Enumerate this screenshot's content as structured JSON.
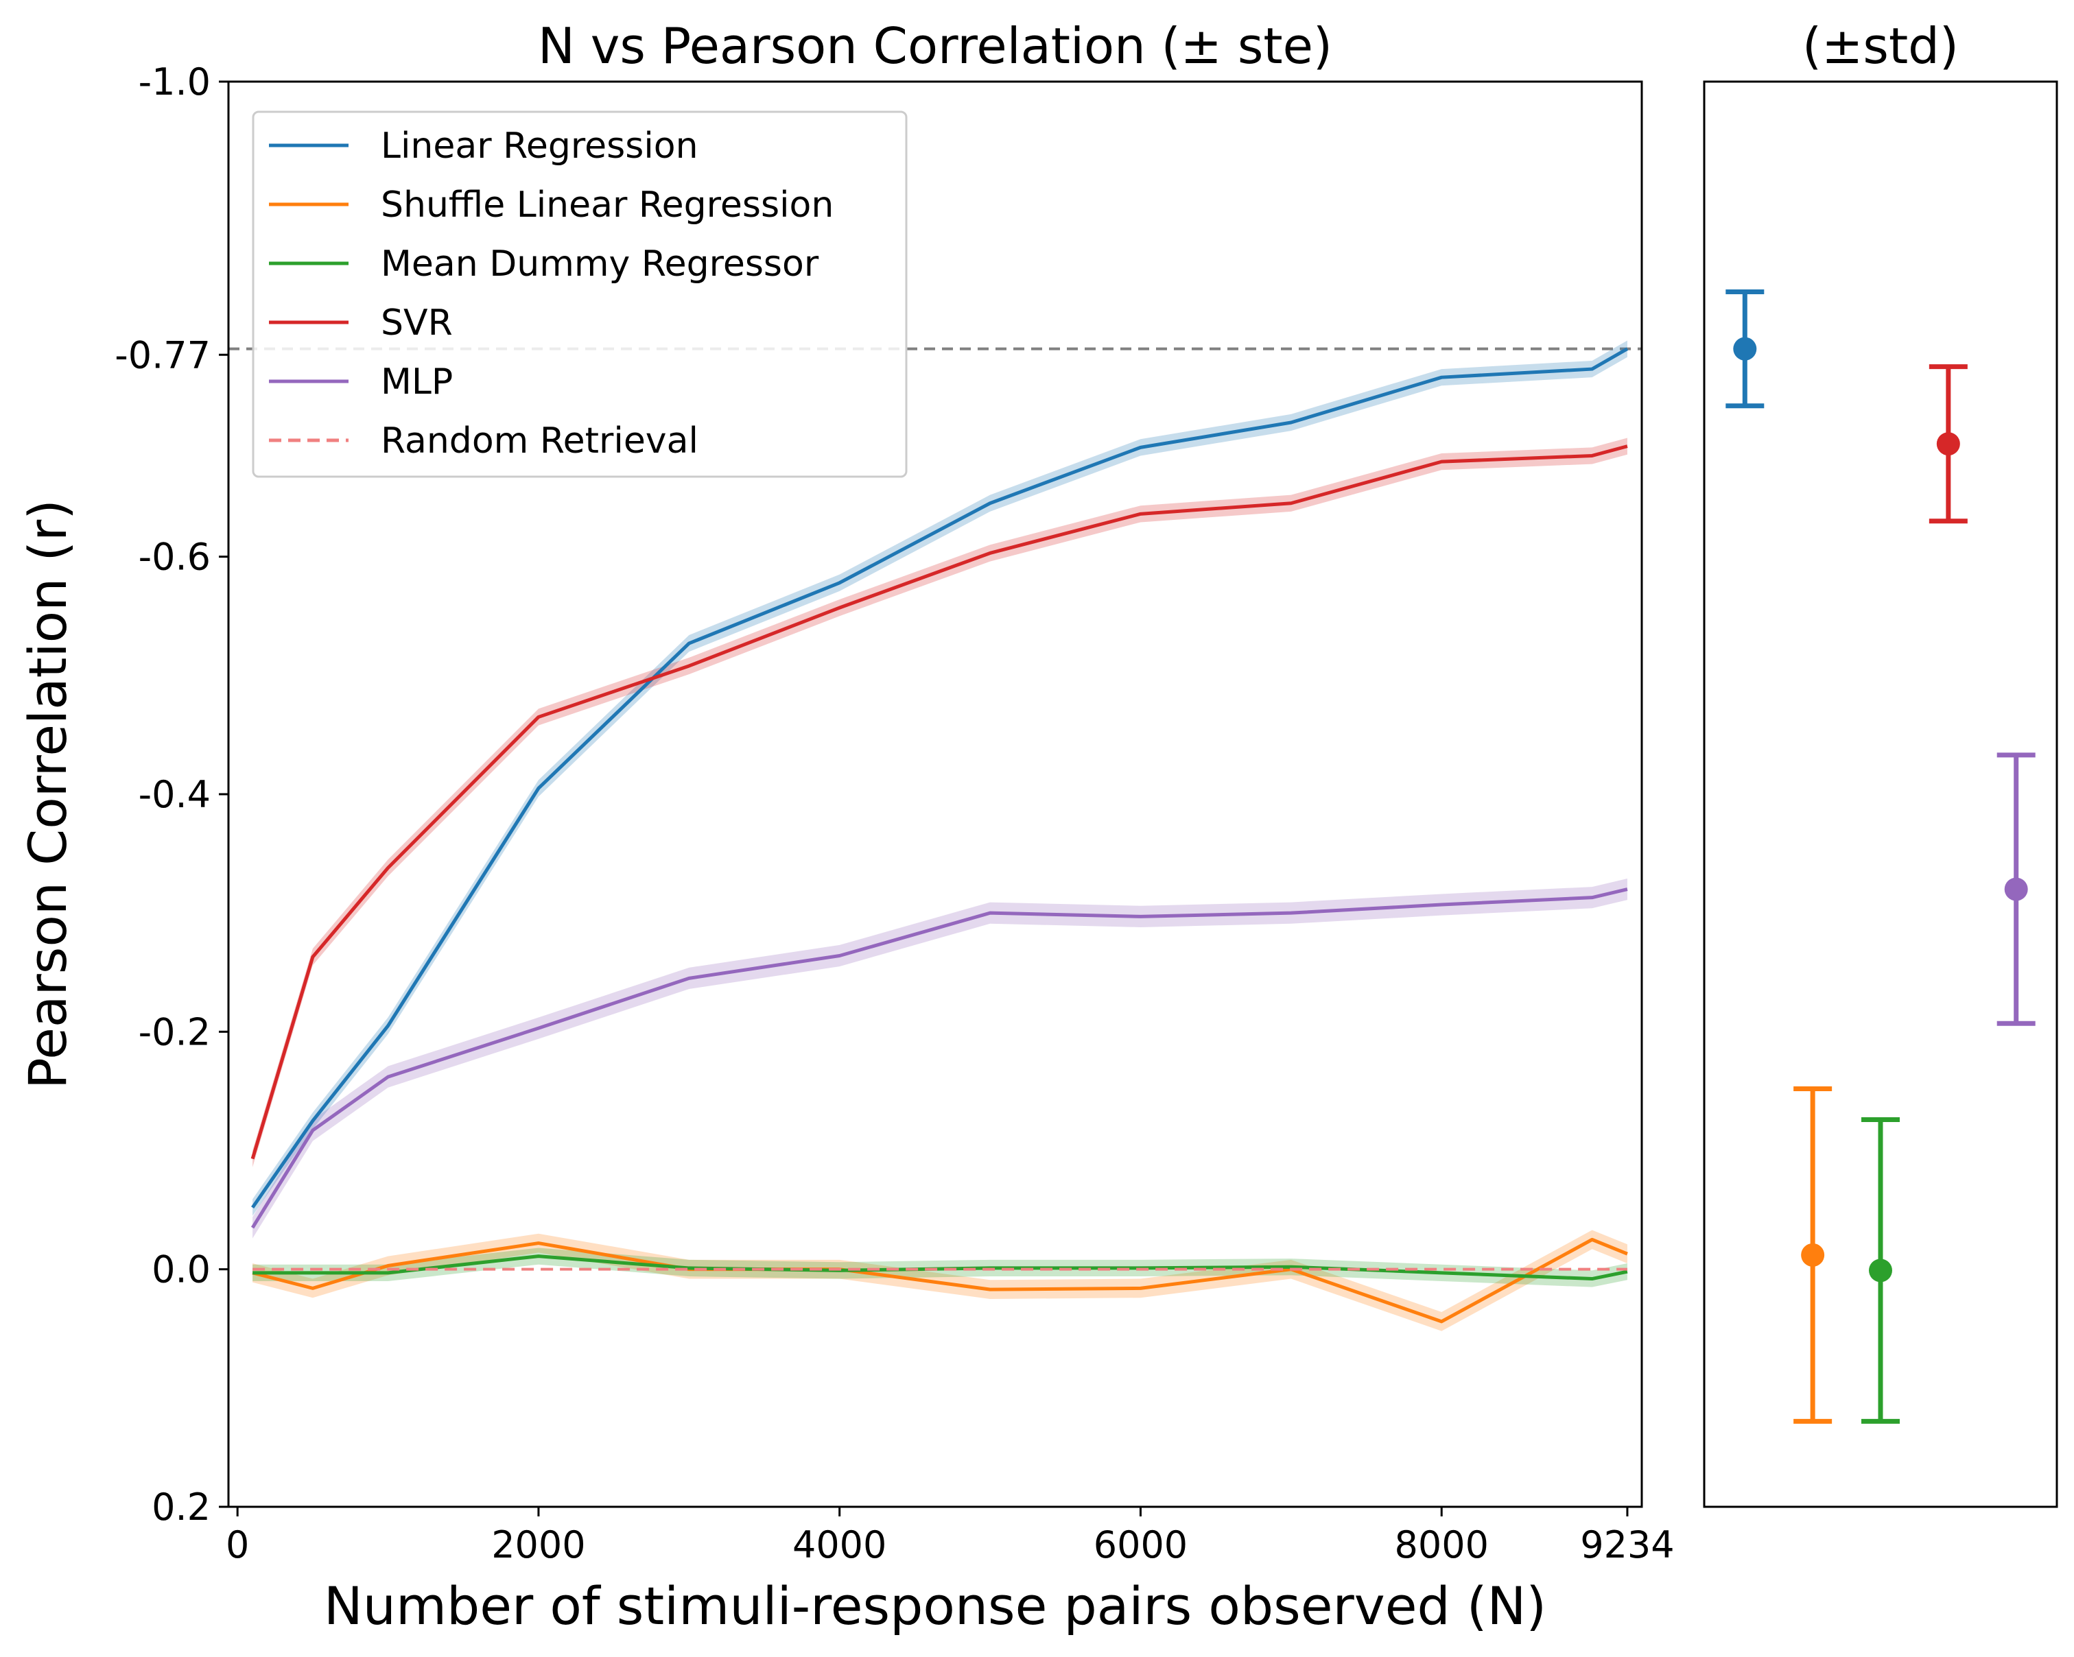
{
  "chart_data": [
    {
      "type": "line",
      "title": "N vs Pearson Correlation (± ste)",
      "xlabel": "Number of stimuli-response pairs observed (N)",
      "ylabel": "Pearson Correlation (r)",
      "xlim": [
        -60,
        9330
      ],
      "ylim": [
        0.2,
        -1.0
      ],
      "y_inverted": true,
      "xticks": [
        0,
        2000,
        4000,
        6000,
        8000,
        9234
      ],
      "xtick_labels": [
        "0",
        "2000",
        "4000",
        "6000",
        "8000",
        "9234"
      ],
      "yticks": [
        -1.0,
        -0.77,
        -0.6,
        -0.4,
        -0.2,
        0.0,
        0.2
      ],
      "ytick_labels": [
        "-1.0",
        "-0.77",
        "-0.6",
        "-0.4",
        "-0.2",
        "0.0",
        "0.2"
      ],
      "legend_position": "top-left",
      "reference_line": {
        "y": -0.775,
        "style": "dashed",
        "color": "#808080"
      },
      "x": [
        100,
        500,
        1000,
        2000,
        3000,
        4000,
        5000,
        6000,
        7000,
        8000,
        9000,
        9234
      ],
      "series": [
        {
          "name": "Linear Regression",
          "color": "#1f77b4",
          "style": "solid",
          "values": [
            -0.052,
            -0.125,
            -0.205,
            -0.405,
            -0.527,
            -0.578,
            -0.645,
            -0.692,
            -0.713,
            -0.751,
            -0.758,
            -0.775
          ],
          "ste": 0.007
        },
        {
          "name": "Shuffle Linear Regression",
          "color": "#ff7f0e",
          "style": "solid",
          "values": [
            0.003,
            0.016,
            -0.003,
            -0.022,
            0.0,
            0.0,
            0.017,
            0.016,
            0.0,
            0.044,
            -0.025,
            -0.013
          ],
          "ste": 0.008
        },
        {
          "name": "Mean Dummy Regressor",
          "color": "#2ca02c",
          "style": "solid",
          "values": [
            0.003,
            0.003,
            0.003,
            -0.011,
            -0.001,
            0.001,
            -0.001,
            -0.001,
            -0.002,
            0.003,
            0.008,
            0.002
          ],
          "ste": 0.007
        },
        {
          "name": "SVR",
          "color": "#d62728",
          "style": "solid",
          "values": [
            -0.093,
            -0.263,
            -0.338,
            -0.465,
            -0.508,
            -0.557,
            -0.603,
            -0.636,
            -0.645,
            -0.68,
            -0.685,
            -0.693
          ],
          "ste": 0.007
        },
        {
          "name": "MLP",
          "color": "#9467bd",
          "style": "solid",
          "values": [
            -0.035,
            -0.117,
            -0.162,
            -0.203,
            -0.245,
            -0.264,
            -0.3,
            -0.297,
            -0.3,
            -0.307,
            -0.313,
            -0.32
          ],
          "ste": 0.009
        },
        {
          "name": "Random Retrieval",
          "color": "#f08080",
          "style": "dashed",
          "values": [
            0.0,
            0.0,
            0.0,
            0.0,
            0.0,
            0.0,
            0.0,
            0.0,
            0.0,
            0.0,
            0.0,
            0.0
          ]
        }
      ]
    },
    {
      "type": "errorbar",
      "title": "(±std)",
      "ylim": [
        0.2,
        -1.0
      ],
      "y_inverted": true,
      "points": [
        {
          "color": "#1f77b4",
          "mean": -0.775,
          "std": 0.048
        },
        {
          "color": "#ff7f0e",
          "mean": -0.012,
          "std": 0.14
        },
        {
          "color": "#2ca02c",
          "mean": 0.001,
          "std": 0.127
        },
        {
          "color": "#d62728",
          "mean": -0.695,
          "std": 0.065
        },
        {
          "color": "#9467bd",
          "mean": -0.32,
          "std": 0.113
        }
      ]
    }
  ]
}
